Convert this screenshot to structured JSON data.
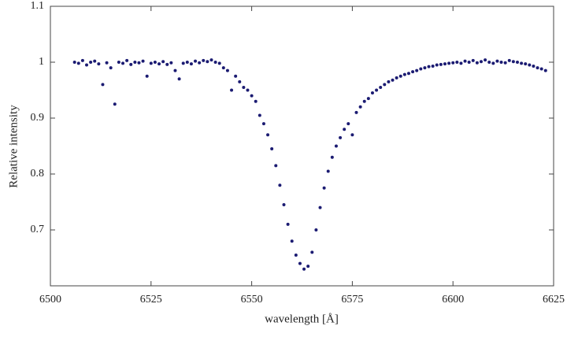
{
  "chart_data": {
    "type": "scatter",
    "x_label": "wavelength [Å]",
    "y_label": "Relative intensity",
    "color": "#1b1b72",
    "xlim": [
      6500,
      6625
    ],
    "xticks": [
      6500,
      6525,
      6550,
      6575,
      6600,
      6625
    ],
    "ylim": [
      0.6,
      1.1
    ],
    "yticks": [
      0.7,
      0.8,
      0.9,
      1,
      1.1
    ],
    "x": [
      6506,
      6507,
      6508,
      6509,
      6510,
      6511,
      6512,
      6513,
      6514,
      6515,
      6516,
      6517,
      6518,
      6519,
      6520,
      6521,
      6522,
      6523,
      6524,
      6525,
      6526,
      6527,
      6528,
      6529,
      6530,
      6531,
      6532,
      6533,
      6534,
      6535,
      6536,
      6537,
      6538,
      6539,
      6540,
      6541,
      6542,
      6543,
      6544,
      6545,
      6546,
      6547,
      6548,
      6549,
      6550,
      6551,
      6552,
      6553,
      6554,
      6555,
      6556,
      6557,
      6558,
      6559,
      6560,
      6561,
      6562,
      6563,
      6564,
      6565,
      6566,
      6567,
      6568,
      6569,
      6570,
      6571,
      6572,
      6573,
      6574,
      6575,
      6576,
      6577,
      6578,
      6579,
      6580,
      6581,
      6582,
      6583,
      6584,
      6585,
      6586,
      6587,
      6588,
      6589,
      6590,
      6591,
      6592,
      6593,
      6594,
      6595,
      6596,
      6597,
      6598,
      6599,
      6600,
      6601,
      6602,
      6603,
      6604,
      6605,
      6606,
      6607,
      6608,
      6609,
      6610,
      6611,
      6612,
      6613,
      6614,
      6615,
      6616,
      6617,
      6618,
      6619,
      6620,
      6621,
      6622,
      6623
    ],
    "values": [
      1.0,
      0.998,
      1.003,
      0.995,
      1.0,
      1.002,
      0.997,
      0.96,
      0.999,
      0.99,
      0.925,
      1.0,
      0.998,
      1.003,
      0.996,
      1.0,
      0.999,
      1.002,
      0.975,
      0.998,
      1.0,
      0.997,
      1.001,
      0.996,
      0.999,
      0.985,
      0.97,
      0.998,
      1.0,
      0.997,
      1.002,
      0.999,
      1.003,
      1.001,
      1.004,
      1.0,
      0.998,
      0.99,
      0.985,
      0.95,
      0.975,
      0.965,
      0.955,
      0.95,
      0.94,
      0.93,
      0.905,
      0.89,
      0.87,
      0.845,
      0.815,
      0.78,
      0.745,
      0.71,
      0.68,
      0.655,
      0.64,
      0.63,
      0.635,
      0.66,
      0.7,
      0.74,
      0.775,
      0.805,
      0.83,
      0.85,
      0.865,
      0.88,
      0.89,
      0.87,
      0.91,
      0.92,
      0.93,
      0.935,
      0.945,
      0.95,
      0.955,
      0.96,
      0.965,
      0.968,
      0.972,
      0.975,
      0.978,
      0.98,
      0.983,
      0.985,
      0.988,
      0.99,
      0.992,
      0.993,
      0.995,
      0.996,
      0.997,
      0.998,
      0.999,
      1.0,
      0.998,
      1.002,
      1.0,
      1.003,
      0.999,
      1.001,
      1.004,
      1.0,
      0.998,
      1.002,
      1.0,
      0.999,
      1.003,
      1.001,
      1.0,
      0.998,
      0.997,
      0.995,
      0.993,
      0.99,
      0.988,
      0.985
    ]
  }
}
